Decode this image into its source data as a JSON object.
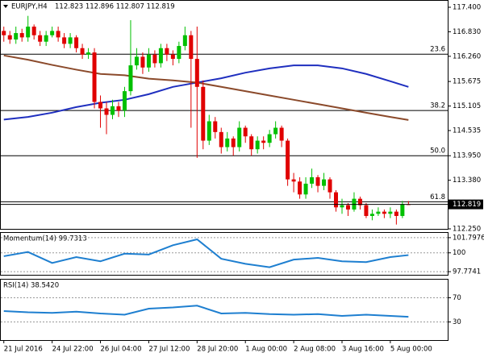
{
  "chart_data": [
    {
      "type": "candlestick",
      "title": "EURJPY,H4",
      "subtitle": "112.823 112.896 112.807 112.819",
      "x": [
        0,
        1,
        2,
        3,
        4,
        5,
        6,
        7,
        8,
        9,
        10,
        11,
        12,
        13,
        14,
        15,
        16,
        17,
        18,
        19,
        20,
        21,
        22,
        23,
        24,
        25,
        26,
        27,
        28,
        29,
        30,
        31,
        32,
        33,
        34,
        35,
        36,
        37,
        38,
        39,
        40,
        41,
        42,
        43,
        44,
        45,
        46,
        47,
        48,
        49,
        50,
        51,
        52,
        53,
        54,
        55,
        56,
        57,
        58,
        59,
        60,
        61,
        62,
        63,
        64,
        65,
        66,
        67
      ],
      "open": [
        116.85,
        116.75,
        116.65,
        116.8,
        116.7,
        116.95,
        116.75,
        116.6,
        116.75,
        116.85,
        116.7,
        116.55,
        116.7,
        116.45,
        116.3,
        116.35,
        115.2,
        115.05,
        114.9,
        115.1,
        115.0,
        115.45,
        116.05,
        116.25,
        116.0,
        116.3,
        116.1,
        116.45,
        116.3,
        116.2,
        116.5,
        116.75,
        116.2,
        115.55,
        114.3,
        114.75,
        114.5,
        114.15,
        114.35,
        114.15,
        114.6,
        114.4,
        114.1,
        114.3,
        114.25,
        114.45,
        114.6,
        114.3,
        113.4,
        113.35,
        113.05,
        113.3,
        113.45,
        113.25,
        113.4,
        113.1,
        112.75,
        112.8,
        112.7,
        112.95,
        112.8,
        112.55,
        112.6,
        112.65,
        112.6,
        112.65,
        112.55,
        112.823
      ],
      "high": [
        116.95,
        116.85,
        116.95,
        116.9,
        117.2,
        117.0,
        116.85,
        116.85,
        116.95,
        116.95,
        116.8,
        116.8,
        116.75,
        116.55,
        116.45,
        116.45,
        115.35,
        115.2,
        115.25,
        115.2,
        115.55,
        117.1,
        116.45,
        116.35,
        116.45,
        116.4,
        116.55,
        116.55,
        116.4,
        116.6,
        116.95,
        116.85,
        116.95,
        115.7,
        114.9,
        114.85,
        114.6,
        114.5,
        114.4,
        114.75,
        114.65,
        114.45,
        114.4,
        114.4,
        114.55,
        114.75,
        114.65,
        114.35,
        113.55,
        113.45,
        113.45,
        113.65,
        113.5,
        113.55,
        113.45,
        113.15,
        112.95,
        112.85,
        113.1,
        113.0,
        112.85,
        112.7,
        112.75,
        112.7,
        112.75,
        112.7,
        112.9,
        112.896
      ],
      "low": [
        116.6,
        116.55,
        116.55,
        116.6,
        116.6,
        116.65,
        116.5,
        116.5,
        116.7,
        116.6,
        116.45,
        116.45,
        116.35,
        116.2,
        116.2,
        115.05,
        114.6,
        114.45,
        114.8,
        114.85,
        114.85,
        115.35,
        115.95,
        115.85,
        115.9,
        116.0,
        116.0,
        116.15,
        116.05,
        116.1,
        116.4,
        114.6,
        113.9,
        114.1,
        114.2,
        114.35,
        114.0,
        114.05,
        113.95,
        114.05,
        114.25,
        113.95,
        114.0,
        114.1,
        114.15,
        114.35,
        114.15,
        113.25,
        113.1,
        112.95,
        112.95,
        113.2,
        113.1,
        113.15,
        112.95,
        112.65,
        112.6,
        112.55,
        112.65,
        112.7,
        112.5,
        112.45,
        112.55,
        112.5,
        112.5,
        112.35,
        112.5,
        112.807
      ],
      "close": [
        116.75,
        116.65,
        116.8,
        116.7,
        116.95,
        116.75,
        116.6,
        116.75,
        116.85,
        116.7,
        116.55,
        116.7,
        116.45,
        116.3,
        116.35,
        115.2,
        115.05,
        114.9,
        115.1,
        115.0,
        115.45,
        116.05,
        116.25,
        116.0,
        116.3,
        116.1,
        116.45,
        116.3,
        116.2,
        116.5,
        116.75,
        116.2,
        115.55,
        114.3,
        114.75,
        114.5,
        114.15,
        114.35,
        114.15,
        114.6,
        114.4,
        114.1,
        114.3,
        114.25,
        114.45,
        114.6,
        114.3,
        113.4,
        113.35,
        113.05,
        113.3,
        113.45,
        113.25,
        113.4,
        113.1,
        112.75,
        112.8,
        112.7,
        112.95,
        112.8,
        112.55,
        112.6,
        112.65,
        112.6,
        112.65,
        112.55,
        112.823,
        112.819
      ],
      "up_color": "#00c000",
      "down_color": "#e00000",
      "series": [
        {
          "color": "#1f2fbf",
          "x": [
            0,
            4,
            8,
            12,
            16,
            20,
            24,
            28,
            32,
            36,
            40,
            44,
            48,
            52,
            56,
            60,
            64,
            67
          ],
          "values": [
            114.79,
            114.85,
            114.95,
            115.08,
            115.18,
            115.25,
            115.38,
            115.55,
            115.65,
            115.75,
            115.88,
            115.98,
            116.05,
            116.05,
            115.98,
            115.85,
            115.68,
            115.55
          ]
        },
        {
          "color": "#8b4a2b",
          "x": [
            0,
            4,
            8,
            12,
            16,
            20,
            24,
            28,
            32,
            36,
            40,
            44,
            48,
            52,
            56,
            60,
            64,
            67
          ],
          "values": [
            116.28,
            116.18,
            116.06,
            115.95,
            115.85,
            115.82,
            115.74,
            115.7,
            115.65,
            115.55,
            115.45,
            115.35,
            115.25,
            115.15,
            115.05,
            114.95,
            114.85,
            114.78
          ]
        }
      ],
      "levels": [
        {
          "value": 116.31,
          "label": "23.6"
        },
        {
          "value": 115.0,
          "label": "38.2"
        },
        {
          "value": 113.95,
          "label": "50.0"
        },
        {
          "value": 112.88,
          "label": "61.8"
        }
      ],
      "current_price": {
        "value": 112.819,
        "label": "112.819"
      },
      "xlim": [
        -0.5,
        73.5
      ],
      "xticks": [
        {
          "value": 0,
          "label": "21 Jul 2016"
        },
        {
          "value": 8,
          "label": "24 Jul 22:00"
        },
        {
          "value": 16,
          "label": "26 Jul 04:00"
        },
        {
          "value": 24,
          "label": "27 Jul 12:00"
        },
        {
          "value": 32,
          "label": "28 Jul 20:00"
        },
        {
          "value": 40,
          "label": "1 Aug 00:00"
        },
        {
          "value": 48,
          "label": "2 Aug 08:00"
        },
        {
          "value": 56,
          "label": "3 Aug 16:00"
        },
        {
          "value": 64,
          "label": "5 Aug 00:00"
        }
      ],
      "ylim": [
        112.25,
        117.55
      ],
      "yticks": [
        {
          "value": 117.4,
          "label": "117.400"
        },
        {
          "value": 116.83,
          "label": "116.830"
        },
        {
          "value": 116.26,
          "label": "116.260"
        },
        {
          "value": 115.675,
          "label": "115.675"
        },
        {
          "value": 115.105,
          "label": "115.105"
        },
        {
          "value": 114.535,
          "label": "114.535"
        },
        {
          "value": 113.95,
          "label": "113.950"
        },
        {
          "value": 113.38,
          "label": "113.380"
        },
        {
          "value": 112.25,
          "label": "112.250"
        }
      ]
    },
    {
      "type": "line",
      "title": "Momentum(14) 99.7313",
      "series": [
        {
          "color": "#1e7fd0",
          "x": [
            0,
            4,
            8,
            12,
            16,
            20,
            24,
            28,
            32,
            36,
            40,
            44,
            48,
            52,
            56,
            60,
            64,
            67
          ],
          "values": [
            99.6,
            100.1,
            98.8,
            99.5,
            99.0,
            99.9,
            99.8,
            100.9,
            101.6,
            99.3,
            98.7,
            98.3,
            99.2,
            99.4,
            99.0,
            98.9,
            99.5,
            99.7313
          ]
        }
      ],
      "xlim": [
        -0.5,
        73.5
      ],
      "ylim": [
        97.4,
        102.36
      ],
      "yticks": [
        {
          "value": 101.7976,
          "label": "101.7976"
        },
        100,
        {
          "value": 97.7741,
          "label": "97.7741"
        }
      ]
    },
    {
      "type": "line",
      "title": "RSI(14) 38.5420",
      "series": [
        {
          "color": "#1e7fd0",
          "x": [
            0,
            4,
            8,
            12,
            16,
            20,
            24,
            28,
            32,
            36,
            40,
            44,
            48,
            52,
            56,
            60,
            64,
            67
          ],
          "values": [
            48,
            46,
            45,
            47,
            44,
            42,
            52,
            54,
            57,
            44,
            45,
            43,
            42,
            43,
            40,
            42,
            40,
            38.542
          ]
        }
      ],
      "xlim": [
        -0.5,
        73.5
      ],
      "ylim": [
        0,
        100
      ],
      "yticks": [
        70,
        30
      ]
    }
  ]
}
